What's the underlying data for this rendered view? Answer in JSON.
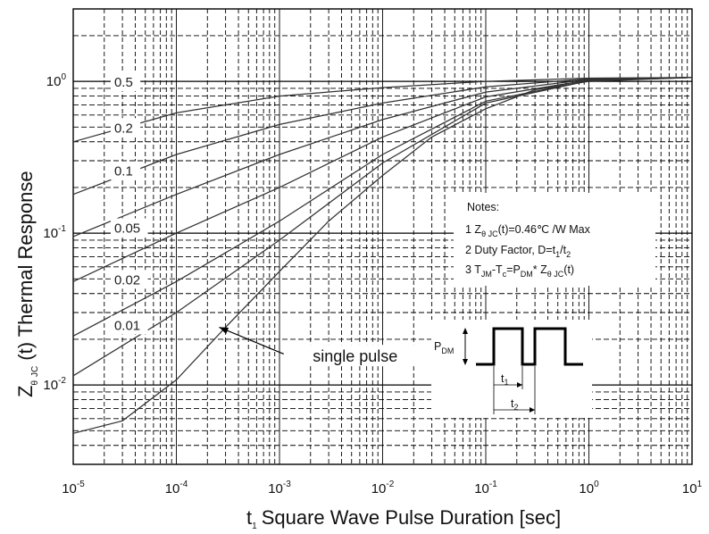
{
  "chart_data": {
    "type": "line",
    "title": "",
    "x_scale": "log",
    "y_scale": "log",
    "xlim": [
      1e-05,
      10
    ],
    "ylim": [
      0.003,
      3
    ],
    "grid": true,
    "x_axis": {
      "title_main": "Square Wave Pulse Duration [sec]",
      "title_var": "t",
      "title_sub": "1",
      "tick_base": "10",
      "ticks": [
        {
          "value": 1e-05,
          "exp": "-5"
        },
        {
          "value": 0.0001,
          "exp": "-4"
        },
        {
          "value": 0.001,
          "exp": "-3"
        },
        {
          "value": 0.01,
          "exp": "-2"
        },
        {
          "value": 0.1,
          "exp": "-1"
        },
        {
          "value": 1,
          "exp": "0"
        },
        {
          "value": 10,
          "exp": "1"
        }
      ]
    },
    "y_axis": {
      "title_z": "Z",
      "title_theta": "θ",
      "title_jc": "JC",
      "title_rest": "(t) Thermal Response",
      "tick_base": "10",
      "ticks": [
        {
          "value": 0.01,
          "exp": "-2"
        },
        {
          "value": 0.1,
          "exp": "-1"
        },
        {
          "value": 1,
          "exp": "0"
        }
      ]
    },
    "series": [
      {
        "name": "0.5",
        "label_at": {
          "x": 2.5e-05,
          "y": 0.96
        },
        "points": [
          [
            1e-05,
            0.4
          ],
          [
            0.0001,
            0.62
          ],
          [
            0.001,
            0.8
          ],
          [
            0.01,
            0.91
          ],
          [
            0.1,
            1.0
          ],
          [
            1,
            1.05
          ],
          [
            10,
            1.06
          ]
        ]
      },
      {
        "name": "0.2",
        "label_at": {
          "x": 2.5e-05,
          "y": 0.48
        },
        "points": [
          [
            1e-05,
            0.18
          ],
          [
            0.0001,
            0.33
          ],
          [
            0.001,
            0.52
          ],
          [
            0.01,
            0.72
          ],
          [
            0.1,
            0.92
          ],
          [
            1,
            1.04
          ],
          [
            10,
            1.06
          ]
        ]
      },
      {
        "name": "0.1",
        "label_at": {
          "x": 2.5e-05,
          "y": 0.25
        },
        "points": [
          [
            1e-05,
            0.095
          ],
          [
            0.0001,
            0.18
          ],
          [
            0.001,
            0.33
          ],
          [
            0.01,
            0.56
          ],
          [
            0.1,
            0.85
          ],
          [
            1,
            1.03
          ],
          [
            10,
            1.06
          ]
        ]
      },
      {
        "name": "0.05",
        "label_at": {
          "x": 2.5e-05,
          "y": 0.105
        },
        "points": [
          [
            1e-05,
            0.048
          ],
          [
            0.0001,
            0.1
          ],
          [
            0.001,
            0.2
          ],
          [
            0.01,
            0.43
          ],
          [
            0.1,
            0.79
          ],
          [
            1,
            1.02
          ],
          [
            10,
            1.06
          ]
        ]
      },
      {
        "name": "0.02",
        "label_at": {
          "x": 2.5e-05,
          "y": 0.048
        },
        "points": [
          [
            1e-05,
            0.021
          ],
          [
            0.0001,
            0.048
          ],
          [
            0.001,
            0.12
          ],
          [
            0.01,
            0.33
          ],
          [
            0.1,
            0.74
          ],
          [
            1,
            1.01
          ],
          [
            10,
            1.06
          ]
        ]
      },
      {
        "name": "0.01",
        "label_at": {
          "x": 2.5e-05,
          "y": 0.024
        },
        "points": [
          [
            1e-05,
            0.0115
          ],
          [
            0.0001,
            0.03
          ],
          [
            0.001,
            0.09
          ],
          [
            0.01,
            0.29
          ],
          [
            0.1,
            0.72
          ],
          [
            1,
            1.01
          ],
          [
            10,
            1.06
          ]
        ]
      },
      {
        "name": "single pulse",
        "label_at": {
          "x": 0.0021,
          "y": 0.0148
        },
        "points": [
          [
            1e-05,
            0.0048
          ],
          [
            3e-05,
            0.0058
          ],
          [
            0.0001,
            0.0108
          ],
          [
            0.0003,
            0.024
          ],
          [
            0.001,
            0.056
          ],
          [
            0.003,
            0.12
          ],
          [
            0.01,
            0.24
          ],
          [
            0.03,
            0.43
          ],
          [
            0.1,
            0.66
          ],
          [
            0.3,
            0.88
          ],
          [
            1,
            1.0
          ],
          [
            10,
            1.06
          ]
        ]
      }
    ],
    "single_pulse_arrow": {
      "from": {
        "x": 0.0011,
        "y": 0.016
      },
      "to": {
        "x": 0.00026,
        "y": 0.024
      }
    },
    "notes": {
      "heading": "Notes:",
      "line1": {
        "pre": "1 Z",
        "sub1": "θ  JC",
        "post": "(t)=0.46℃ /W Max"
      },
      "line2": {
        "pre": "2 Duty Factor, D=t",
        "sub1": "1",
        "mid": "/t",
        "sub2": "2"
      },
      "line3": {
        "pre": "3 T",
        "sub1": "JM",
        "m1": "-T",
        "sub2": "c",
        "m2": "=P",
        "sub3": "DM",
        "m3": "* Z",
        "sub4": "θ  JC",
        "post": "(t)"
      }
    },
    "pulse_diagram": {
      "pdm_main": "P",
      "pdm_sub": "DM",
      "t1_main": "t",
      "t1_sub": "1",
      "t2_main": "t",
      "t2_sub": "2"
    }
  }
}
